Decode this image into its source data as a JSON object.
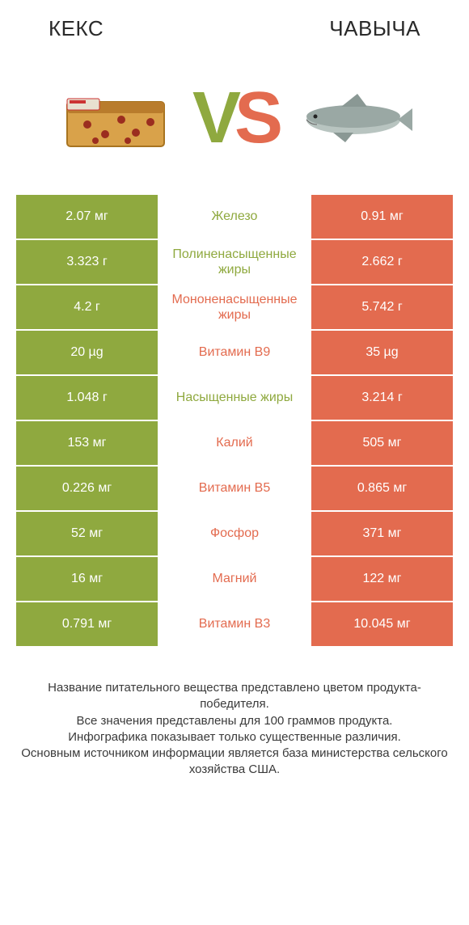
{
  "colors": {
    "left": "#8fa93f",
    "right": "#e36b4f",
    "bg": "#ffffff",
    "text": "#333333"
  },
  "header": {
    "left_title": "КЕКС",
    "right_title": "ЧАВЫЧА"
  },
  "vs": {
    "v": "V",
    "s": "S"
  },
  "rows": [
    {
      "left": "2.07 мг",
      "label": "Железо",
      "right": "0.91 мг",
      "winner": "left"
    },
    {
      "left": "3.323 г",
      "label": "Полиненасыщенные жиры",
      "right": "2.662 г",
      "winner": "left"
    },
    {
      "left": "4.2 г",
      "label": "Мононенасыщенные жиры",
      "right": "5.742 г",
      "winner": "right"
    },
    {
      "left": "20 µg",
      "label": "Витамин B9",
      "right": "35 µg",
      "winner": "right"
    },
    {
      "left": "1.048 г",
      "label": "Насыщенные жиры",
      "right": "3.214 г",
      "winner": "left"
    },
    {
      "left": "153 мг",
      "label": "Калий",
      "right": "505 мг",
      "winner": "right"
    },
    {
      "left": "0.226 мг",
      "label": "Витамин B5",
      "right": "0.865 мг",
      "winner": "right"
    },
    {
      "left": "52 мг",
      "label": "Фосфор",
      "right": "371 мг",
      "winner": "right"
    },
    {
      "left": "16 мг",
      "label": "Магний",
      "right": "122 мг",
      "winner": "right"
    },
    {
      "left": "0.791 мг",
      "label": "Витамин B3",
      "right": "10.045 мг",
      "winner": "right"
    }
  ],
  "footer": {
    "line1": "Название питательного вещества представлено цветом продукта-победителя.",
    "line2": "Все значения представлены для 100 граммов продукта.",
    "line3": "Инфографика показывает только существенные различия.",
    "line4": "Основным источником информации является база министерства сельского хозяйства США."
  }
}
